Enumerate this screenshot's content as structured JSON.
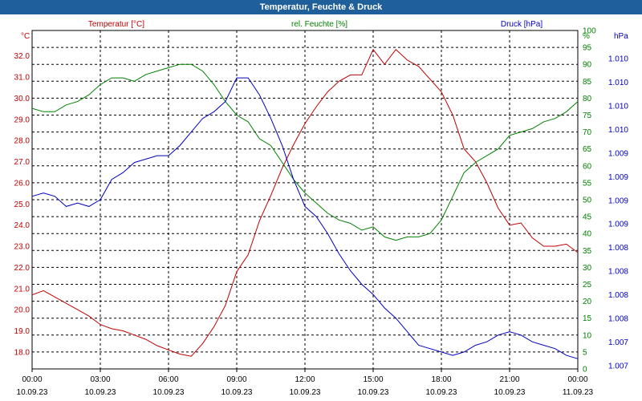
{
  "window": {
    "title": "Temperatur, Feuchte & Druck"
  },
  "colors": {
    "temperature": "#c00000",
    "humidity": "#008000",
    "pressure": "#0000c0",
    "titlebar": "#1f5f9a"
  },
  "chart_data": {
    "type": "line",
    "title": "Temperatur, Feuchte & Druck",
    "grid": true,
    "legend": "top",
    "x_ticks": [
      {
        "time": "00:00",
        "date": "10.09.23"
      },
      {
        "time": "03:00",
        "date": "10.09.23"
      },
      {
        "time": "06:00",
        "date": "10.09.23"
      },
      {
        "time": "09:00",
        "date": "10.09.23"
      },
      {
        "time": "12:00",
        "date": "10.09.23"
      },
      {
        "time": "15:00",
        "date": "10.09.23"
      },
      {
        "time": "18:00",
        "date": "10.09.23"
      },
      {
        "time": "21:00",
        "date": "10.09.23"
      },
      {
        "time": "00:00",
        "date": "11.09.23"
      }
    ],
    "axes": {
      "temperature": {
        "unit": "°C",
        "range": [
          17.2,
          33.2
        ],
        "ticks": [
          "32.0",
          "31.0",
          "30.0",
          "29.0",
          "28.0",
          "27.0",
          "26.0",
          "25.0",
          "24.0",
          "23.0",
          "22.0",
          "21.0",
          "20.0",
          "19.0",
          "18.0"
        ]
      },
      "humidity": {
        "unit": "%",
        "range": [
          0,
          100
        ],
        "ticks": [
          "100",
          "95",
          "90",
          "85",
          "80",
          "75",
          "70",
          "65",
          "60",
          "55",
          "50",
          "45",
          "40",
          "35",
          "30",
          "25",
          "20",
          "15",
          "10",
          "5",
          "0"
        ]
      },
      "pressure": {
        "unit": "hPa",
        "ticks": [
          "1.010",
          "1.010",
          "1.010",
          "1.010",
          "1.009",
          "1.009",
          "1.009",
          "1.009",
          "1.008",
          "1.008",
          "1.008",
          "1.008",
          "1.007",
          "1.007"
        ]
      }
    },
    "series": [
      {
        "name": "Temperatur [°C]",
        "axis": "temperature",
        "x": [
          0,
          0.5,
          1,
          1.5,
          2,
          2.5,
          3,
          3.5,
          4,
          4.5,
          5,
          5.5,
          6,
          6.5,
          7,
          7.5,
          8,
          8.5,
          9,
          9.5,
          10,
          10.5,
          11,
          11.5,
          12,
          12.5,
          13,
          13.5,
          14,
          14.5,
          15,
          15.5,
          16,
          16.5,
          17,
          17.5,
          18,
          18.5,
          19,
          19.5,
          20,
          20.5,
          21,
          21.5,
          22,
          22.5,
          23,
          23.5,
          24
        ],
        "values": [
          20.7,
          20.9,
          20.6,
          20.3,
          20.0,
          19.7,
          19.3,
          19.1,
          19.0,
          18.8,
          18.6,
          18.3,
          18.1,
          17.9,
          17.8,
          18.4,
          19.2,
          20.2,
          21.8,
          22.6,
          24.2,
          25.4,
          26.7,
          27.8,
          28.8,
          29.6,
          30.3,
          30.8,
          31.1,
          31.1,
          32.3,
          31.6,
          32.3,
          31.8,
          31.5,
          30.9,
          30.3,
          29.2,
          27.6,
          27.0,
          26.0,
          24.8,
          24.0,
          24.1,
          23.4,
          23.0,
          23.0,
          23.1,
          22.7
        ]
      },
      {
        "name": "rel. Feuchte [%]",
        "axis": "humidity",
        "x": [
          0,
          0.5,
          1,
          1.5,
          2,
          2.5,
          3,
          3.5,
          4,
          4.5,
          5,
          5.5,
          6,
          6.5,
          7,
          7.5,
          8,
          8.5,
          9,
          9.5,
          10,
          10.5,
          11,
          11.5,
          12,
          12.5,
          13,
          13.5,
          14,
          14.5,
          15,
          15.5,
          16,
          16.5,
          17,
          17.5,
          18,
          18.5,
          19,
          19.5,
          20,
          20.5,
          21,
          21.5,
          22,
          22.5,
          23,
          23.5,
          24
        ],
        "values": [
          77,
          76,
          76,
          78,
          79,
          81,
          84,
          86,
          86,
          85,
          87,
          88,
          89,
          90,
          90,
          88,
          84,
          79,
          75,
          73,
          68,
          66,
          61,
          56,
          52,
          49,
          46,
          44,
          43,
          41,
          42,
          39,
          38,
          39,
          39,
          40,
          44,
          51,
          58,
          61,
          63,
          65,
          69,
          70,
          71,
          73,
          74,
          76,
          79
        ]
      },
      {
        "name": "Druck [hPa]",
        "axis": "pressure",
        "x": [
          0,
          0.5,
          1,
          1.5,
          2,
          2.5,
          3,
          3.5,
          4,
          4.5,
          5,
          5.5,
          6,
          6.5,
          7,
          7.5,
          8,
          8.5,
          9,
          9.5,
          10,
          10.5,
          11,
          11.5,
          12,
          12.5,
          13,
          13.5,
          14,
          14.5,
          15,
          15.5,
          16,
          16.5,
          17,
          17.5,
          18,
          18.5,
          19,
          19.5,
          20,
          20.5,
          21,
          21.5,
          22,
          22.5,
          23,
          23.5,
          24
        ],
        "values": [
          0.51,
          0.52,
          0.51,
          0.48,
          0.49,
          0.48,
          0.5,
          0.56,
          0.58,
          0.61,
          0.62,
          0.63,
          0.63,
          0.66,
          0.7,
          0.74,
          0.76,
          0.79,
          0.86,
          0.86,
          0.81,
          0.74,
          0.66,
          0.56,
          0.48,
          0.45,
          0.4,
          0.34,
          0.29,
          0.25,
          0.22,
          0.18,
          0.15,
          0.11,
          0.07,
          0.06,
          0.05,
          0.04,
          0.05,
          0.07,
          0.08,
          0.1,
          0.11,
          0.1,
          0.08,
          0.07,
          0.06,
          0.04,
          0.03
        ]
      }
    ]
  }
}
